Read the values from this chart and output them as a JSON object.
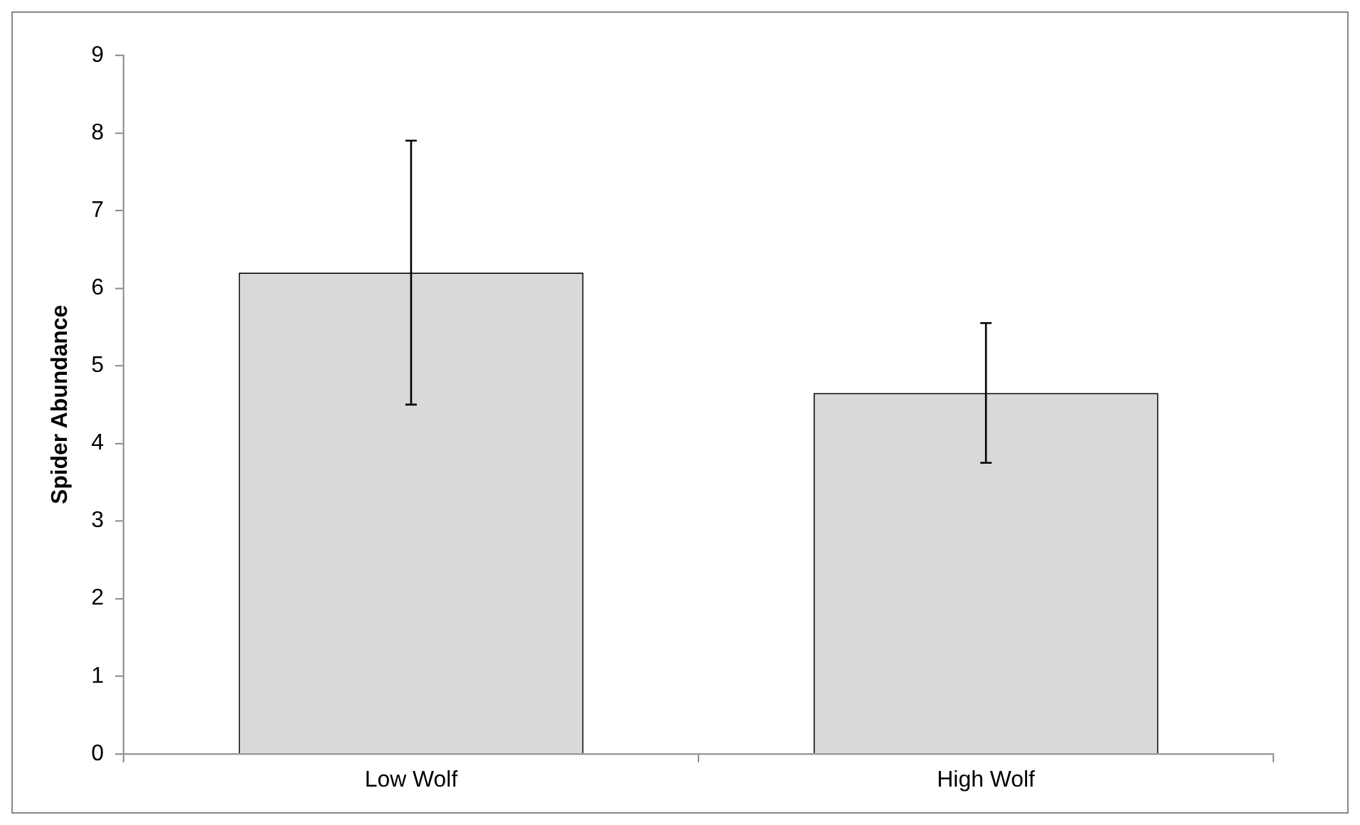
{
  "chart_data": {
    "type": "bar",
    "ylabel": "Spider Abundance",
    "categories": [
      "Low Wolf",
      "High Wolf"
    ],
    "values": [
      6.2,
      4.65
    ],
    "errors": [
      1.7,
      0.9
    ],
    "color": "#d9d9d9",
    "ylim": [
      0,
      9
    ],
    "yticks": [
      0,
      1,
      2,
      3,
      4,
      5,
      6,
      7,
      8,
      9
    ]
  }
}
